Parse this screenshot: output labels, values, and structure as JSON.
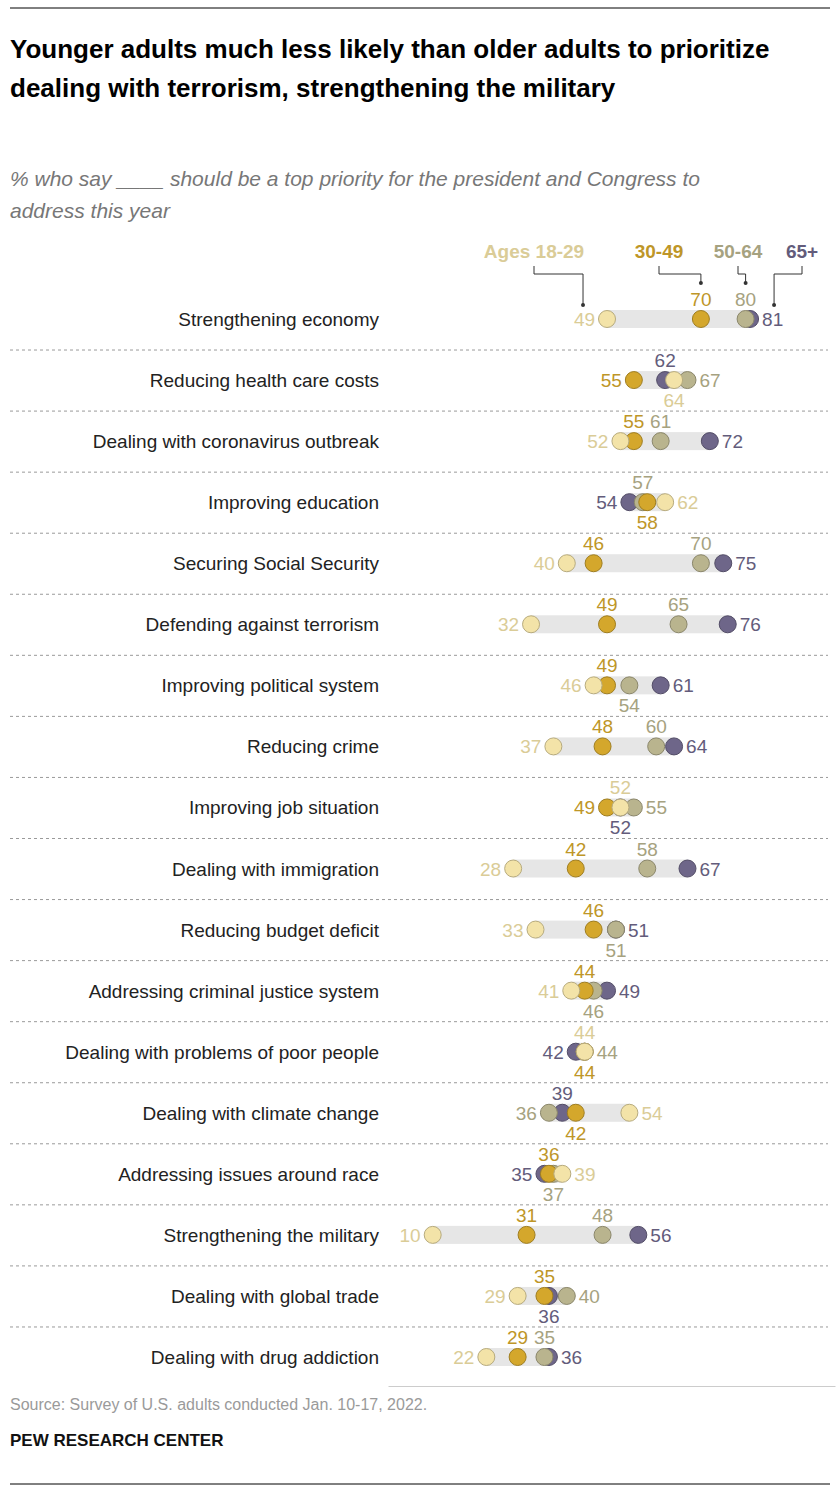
{
  "chart_data": {
    "type": "dot",
    "title": "Younger adults much less likely than older adults to prioritize dealing with terrorism, strengthening the military",
    "subtitle": "% who say ____ should be a top priority for the president and Congress to address this year",
    "categories": [
      "Strengthening economy",
      "Reducing health care costs",
      "Dealing with coronavirus outbreak",
      "Improving education",
      "Securing Social Security",
      "Defending against terrorism",
      "Improving political system",
      "Reducing crime",
      "Improving job situation",
      "Dealing with immigration",
      "Reducing budget deficit",
      "Addressing criminal justice system",
      "Dealing with problems of poor people",
      "Dealing with climate change",
      "Addressing issues around race",
      "Strengthening the military",
      "Dealing with global trade",
      "Dealing with drug addiction"
    ],
    "series": [
      {
        "name": "Ages 18-29",
        "color": "#f3e3a8",
        "values": [
          49,
          64,
          52,
          62,
          40,
          32,
          46,
          37,
          52,
          28,
          33,
          41,
          44,
          54,
          39,
          10,
          29,
          22
        ]
      },
      {
        "name": "30-49",
        "color": "#d4a72c",
        "values": [
          70,
          55,
          55,
          58,
          46,
          49,
          49,
          48,
          49,
          42,
          46,
          44,
          44,
          42,
          36,
          31,
          35,
          29
        ]
      },
      {
        "name": "50-64",
        "color": "#b9b48e",
        "values": [
          80,
          67,
          61,
          57,
          70,
          65,
          54,
          60,
          55,
          58,
          51,
          46,
          44,
          36,
          37,
          48,
          40,
          35
        ]
      },
      {
        "name": "65+",
        "color": "#6e6689",
        "values": [
          81,
          62,
          72,
          54,
          75,
          76,
          61,
          64,
          52,
          67,
          51,
          49,
          42,
          39,
          35,
          56,
          36,
          36
        ]
      }
    ],
    "xlim": [
      0,
      100
    ],
    "orientation": "horizontal",
    "data_labels": true,
    "tick_labels": "y",
    "source": "Source: Survey of U.S. adults conducted Jan. 10-17, 2022.",
    "credit": "PEW RESEARCH CENTER"
  }
}
